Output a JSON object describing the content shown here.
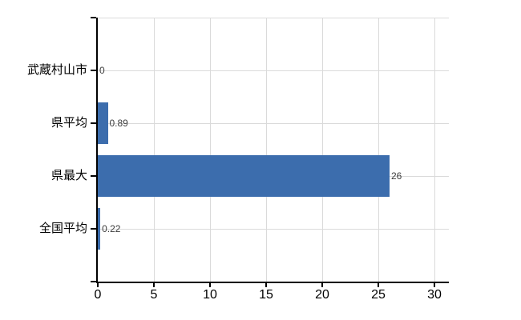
{
  "chart_data": {
    "type": "bar",
    "orientation": "horizontal",
    "title": "",
    "xlabel": "",
    "ylabel": "",
    "categories": [
      "武蔵村山市",
      "県平均",
      "県最大",
      "全国平均"
    ],
    "values": [
      0,
      0.89,
      26,
      0.22
    ],
    "value_labels": [
      "0",
      "0.89",
      "26",
      "0.22"
    ],
    "xlim": [
      0,
      30
    ],
    "xticks": [
      0,
      5,
      10,
      15,
      20,
      25,
      30
    ],
    "grid": true,
    "legend": false,
    "colors": {
      "bar": "#3C6DAD",
      "axis": "#000000",
      "gridline": "#DADADA",
      "tick_label_text": "#000000",
      "category_label_text": "#000000",
      "value_label_text": "#3D3D3D",
      "background": "#FFFFFF"
    }
  }
}
